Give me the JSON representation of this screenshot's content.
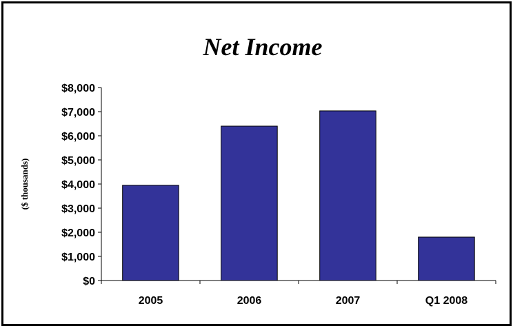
{
  "chart_data": {
    "type": "bar",
    "title": "Net Income",
    "ylabel": "($ thousands)",
    "xlabel": "",
    "categories": [
      "2005",
      "2006",
      "2007",
      "Q1 2008"
    ],
    "values": [
      3950,
      6400,
      7030,
      1800
    ],
    "ylim": [
      0,
      8000
    ],
    "yticks": [
      0,
      1000,
      2000,
      3000,
      4000,
      5000,
      6000,
      7000,
      8000
    ],
    "ytick_labels": [
      "$0",
      "$1,000",
      "$2,000",
      "$3,000",
      "$4,000",
      "$5,000",
      "$6,000",
      "$7,000",
      "$8,000"
    ],
    "grid": false,
    "legend": "none",
    "bar_color": "#333399",
    "bar_edge_color": "#000000"
  }
}
